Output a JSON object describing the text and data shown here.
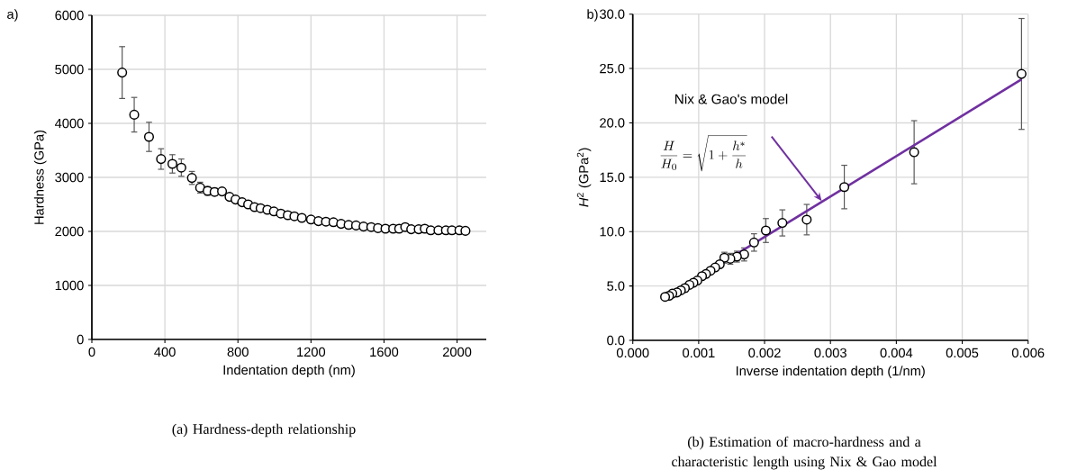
{
  "chart_data": [
    {
      "type": "scatter",
      "xlabel": "Indentation depth (nm)",
      "ylabel": "Hardness (GPa)",
      "x": [
        166,
        232,
        313,
        379,
        441,
        490,
        548,
        593,
        634,
        672,
        713,
        754,
        787,
        823,
        856,
        891,
        924,
        961,
        997,
        1035,
        1073,
        1109,
        1150,
        1200,
        1241,
        1282,
        1323,
        1365,
        1406,
        1447,
        1488,
        1530,
        1567,
        1608,
        1650,
        1683,
        1716,
        1749,
        1790,
        1823,
        1856,
        1898,
        1939,
        1972,
        2013,
        2046
      ],
      "values": [
        4940,
        4160,
        3750,
        3340,
        3250,
        3180,
        2990,
        2810,
        2750,
        2730,
        2740,
        2640,
        2590,
        2540,
        2500,
        2450,
        2430,
        2400,
        2370,
        2330,
        2300,
        2280,
        2250,
        2220,
        2190,
        2180,
        2170,
        2140,
        2120,
        2110,
        2090,
        2080,
        2060,
        2050,
        2050,
        2050,
        2080,
        2040,
        2040,
        2050,
        2020,
        2020,
        2020,
        2020,
        2020,
        2010
      ],
      "errors": [
        480,
        320,
        270,
        190,
        170,
        160,
        120,
        100,
        80,
        70,
        60,
        50,
        null,
        null,
        null,
        null,
        null,
        null,
        null,
        null,
        null,
        null,
        null,
        null,
        null,
        null,
        null,
        null,
        null,
        null,
        null,
        null,
        null,
        null,
        null,
        null,
        null,
        null,
        null,
        null,
        null,
        null,
        null,
        null,
        null,
        null
      ],
      "color": "#000000",
      "marker": "circle",
      "grid": true,
      "xlim": [
        0,
        2160
      ],
      "ylim": [
        0,
        6000
      ],
      "xticks": [
        0,
        400,
        800,
        1200,
        1600,
        2000
      ],
      "yticks": [
        0,
        1000,
        2000,
        3000,
        4000,
        5000,
        6000
      ],
      "annotations": [
        "a)",
        "(a)  Hardness-depth relationship"
      ]
    },
    {
      "type": "scatter",
      "xlabel": "Inverse indentation depth (1/nm)",
      "ylabel": "*H*$^{2}$ (GPa$^{2}$)",
      "series": [
        {
          "type": "scatter",
          "color": "#000000",
          "x": [
            0.0059,
            0.00427,
            0.00321,
            0.00264,
            0.00227,
            0.00202,
            0.00184,
            0.00169,
            0.00158,
            0.00148,
            0.00139,
            0.00132,
            0.00125,
            0.00118,
            0.00111,
            0.00105,
            0.00098,
            0.00092,
            0.00086,
            0.00079,
            0.00073,
            0.00067,
            0.0006,
            0.00055,
            0.00049
          ],
          "values": [
            24.5,
            17.3,
            14.1,
            11.1,
            10.8,
            10.1,
            9.0,
            7.9,
            7.7,
            7.5,
            7.6,
            7.0,
            6.7,
            6.4,
            6.1,
            5.9,
            5.5,
            5.3,
            5.1,
            4.8,
            4.6,
            4.4,
            4.3,
            4.1,
            4.0
          ],
          "errors": [
            5.1,
            2.9,
            2.0,
            1.4,
            1.2,
            1.1,
            0.8,
            0.6,
            0.5,
            0.5,
            0.5,
            null,
            null,
            null,
            null,
            null,
            null,
            null,
            null,
            null,
            null,
            null,
            null,
            null,
            null
          ]
        },
        {
          "type": "line",
          "color": "#7030a0",
          "marker": "none",
          "x": [
            0.00049,
            0.0059
          ],
          "values": [
            3.9,
            24.0
          ]
        }
      ],
      "marker": "circle",
      "grid": true,
      "xlim": [
        0,
        0.006
      ],
      "ylim": [
        0,
        30
      ],
      "xticks": [
        {
          "value": 0,
          "label": "0.000"
        },
        {
          "value": 0.001,
          "label": "0.001"
        },
        {
          "value": 0.002,
          "label": "0.002"
        },
        {
          "value": 0.003,
          "label": "0.003"
        },
        {
          "value": 0.004,
          "label": "0.004"
        },
        {
          "value": 0.005,
          "label": "0.005"
        },
        {
          "value": 0.006,
          "label": "0.006"
        }
      ],
      "yticks": [
        {
          "value": 0,
          "label": "0.0"
        },
        {
          "value": 5,
          "label": "5.0"
        },
        {
          "value": 10,
          "label": "10.0"
        },
        {
          "value": 15,
          "label": "15.0"
        },
        {
          "value": 20,
          "label": "20.0"
        },
        {
          "value": 25,
          "label": "25.0"
        },
        {
          "value": 30,
          "label": "30.0"
        }
      ],
      "annotations": [
        "b)",
        "(b)  Estimation of macro-hardness and a characteristic length using Nix & Gao model",
        "Nix & Gao's model",
        "\\frac{H}{H_0}=\\sqrt{1+\\frac{h^{*}}{h}}"
      ]
    }
  ]
}
